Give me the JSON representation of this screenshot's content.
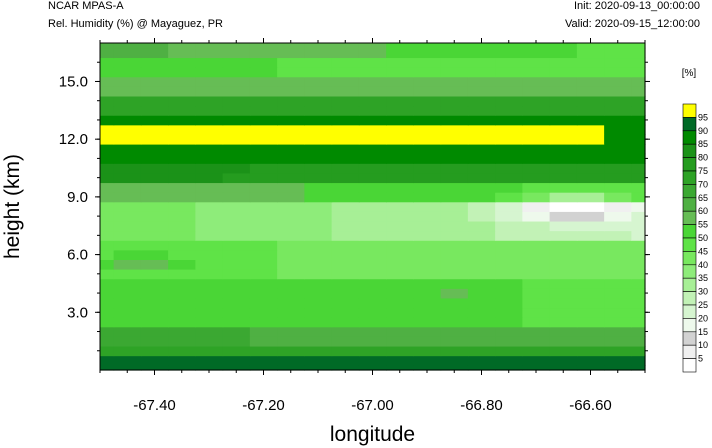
{
  "header": {
    "model": "NCAR MPAS-A",
    "field": "Rel. Humidity (%) @ Mayaguez, PR",
    "init": "Init: 2020-09-13_00:00:00",
    "valid": "Valid: 2020-09-15_12:00:00"
  },
  "chart_data": {
    "type": "heatmap",
    "title": "Rel. Humidity (%) @ Mayaguez, PR",
    "xlabel": "longitude",
    "ylabel": "height (km)",
    "xlim": [
      -67.5,
      -66.5
    ],
    "ylim": [
      0,
      17
    ],
    "x_ticks": [
      -67.4,
      -67.2,
      -67.0,
      -66.8,
      -66.6
    ],
    "x_tick_labels": [
      "-67.40",
      "-67.20",
      "-67.00",
      "-66.80",
      "-66.60"
    ],
    "y_ticks": [
      3,
      6,
      9,
      12,
      15
    ],
    "y_tick_labels": [
      "3.0",
      "6.0",
      "9.0",
      "12.0",
      "15.0"
    ],
    "x": [
      -67.5,
      -67.45,
      -67.4,
      -67.35,
      -67.3,
      -67.25,
      -67.2,
      -67.15,
      -67.1,
      -67.05,
      -67.0,
      -66.95,
      -66.9,
      -66.85,
      -66.8,
      -66.75,
      -66.7,
      -66.65,
      -66.6,
      -66.55,
      -66.5
    ],
    "y": [
      0,
      0.5,
      1,
      1.5,
      2,
      2.5,
      3,
      3.5,
      4,
      4.5,
      5,
      5.5,
      6,
      6.5,
      7,
      7.5,
      8,
      8.5,
      9,
      9.5,
      10,
      10.5,
      11,
      11.5,
      12,
      12.5,
      13,
      13.5,
      14,
      14.5,
      15,
      15.5,
      16,
      16.5,
      17
    ],
    "colorbar": {
      "unit": "[%]",
      "levels": [
        5,
        10,
        15,
        20,
        25,
        30,
        35,
        40,
        45,
        50,
        55,
        60,
        65,
        70,
        75,
        80,
        85,
        90,
        95
      ],
      "colors": [
        "#ffffff",
        "#f0f0f0",
        "#d2d2d2",
        "#eef9ec",
        "#d6f5d0",
        "#c2f2b6",
        "#a7ef96",
        "#8eec7a",
        "#78e85f",
        "#5fe347",
        "#4ad636",
        "#66bd55",
        "#4fb043",
        "#3ba832",
        "#2ea326",
        "#259c1f",
        "#1b9218",
        "#008a00",
        "#006a26",
        "#ffff00"
      ]
    }
  }
}
